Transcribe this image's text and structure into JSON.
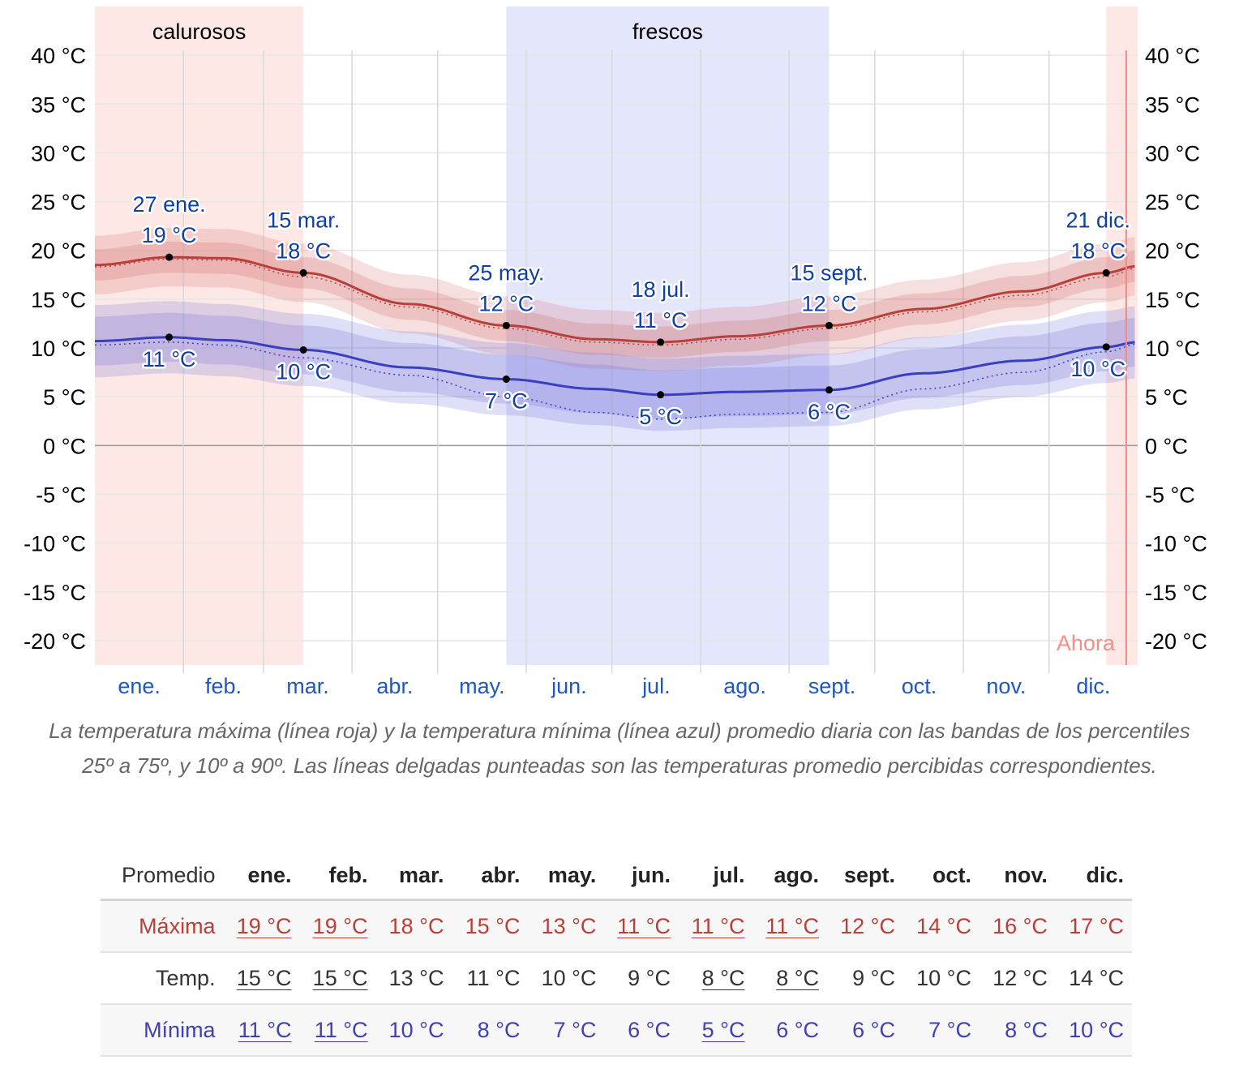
{
  "chart_data": {
    "type": "line",
    "title": "",
    "xlabel": "",
    "ylabel": "",
    "ylim": [
      -22.5,
      45
    ],
    "y_ticks": [
      -20,
      -15,
      -10,
      -5,
      0,
      5,
      10,
      15,
      20,
      25,
      30,
      35,
      40
    ],
    "y_tick_labels": [
      "-20 °C",
      "-15 °C",
      "-10 °C",
      "-5 °C",
      "0 °C",
      "5 °C",
      "10 °C",
      "15 °C",
      "20 °C",
      "25 °C",
      "30 °C",
      "35 °C",
      "40 °C"
    ],
    "months": [
      "ene.",
      "feb.",
      "mar.",
      "abr.",
      "may.",
      "jun.",
      "jul.",
      "ago.",
      "sept.",
      "oct.",
      "nov.",
      "dic."
    ],
    "seasons": [
      {
        "label": "calurosos",
        "start_day": 0,
        "end_day": 73,
        "color": "#fde8e6"
      },
      {
        "label": "frescos",
        "start_day": 144,
        "end_day": 257,
        "color": "#e4e6fb"
      },
      {
        "label": "",
        "start_day": 354,
        "end_day": 365,
        "color": "#fde8e6"
      }
    ],
    "now": {
      "label": "Ahora",
      "day": 361
    },
    "series": [
      {
        "key": "high",
        "color": "#b8403a",
        "days": [
          0,
          26,
          45,
          73,
          110,
          144,
          175,
          198,
          225,
          257,
          290,
          325,
          354,
          365
        ],
        "values": [
          18.5,
          19.3,
          19.2,
          17.7,
          14.5,
          12.3,
          10.9,
          10.6,
          11.2,
          12.3,
          14.0,
          15.8,
          17.7,
          18.4
        ],
        "feels": [
          18.3,
          19.1,
          19.0,
          17.3,
          14.2,
          12.0,
          10.6,
          10.3,
          10.9,
          12.0,
          13.7,
          15.4,
          17.3,
          18.2
        ],
        "p25_75": 1.6,
        "p10_90": 3.0
      },
      {
        "key": "low",
        "color": "#3a3ec0",
        "days": [
          0,
          26,
          45,
          73,
          110,
          144,
          175,
          198,
          225,
          257,
          290,
          325,
          354,
          365
        ],
        "values": [
          10.7,
          11.1,
          10.8,
          9.8,
          8.0,
          6.8,
          5.8,
          5.2,
          5.5,
          5.7,
          7.4,
          8.7,
          10.1,
          10.6
        ],
        "feels": [
          10.3,
          10.6,
          10.3,
          9.0,
          7.2,
          5.0,
          3.4,
          2.7,
          3.2,
          3.4,
          5.8,
          7.5,
          9.6,
          10.4
        ],
        "p25_75": 2.5,
        "p10_90": 3.7
      }
    ],
    "annotations": [
      {
        "day": 26,
        "value": 19.3,
        "date": "27 ene.",
        "temp": "19 °C",
        "series": "high"
      },
      {
        "day": 73,
        "value": 17.7,
        "date": "15 mar.",
        "temp": "18 °C",
        "series": "high"
      },
      {
        "day": 144,
        "value": 12.3,
        "date": "25 may.",
        "temp": "12 °C",
        "series": "high"
      },
      {
        "day": 198,
        "value": 10.6,
        "date": "18 jul.",
        "temp": "11 °C",
        "series": "high"
      },
      {
        "day": 257,
        "value": 12.3,
        "date": "15 sept.",
        "temp": "12 °C",
        "series": "high"
      },
      {
        "day": 354,
        "value": 17.7,
        "date": "21 dic.",
        "temp": "18 °C",
        "series": "high"
      },
      {
        "day": 26,
        "value": 11.1,
        "date": "",
        "temp": "11 °C",
        "series": "low"
      },
      {
        "day": 73,
        "value": 9.8,
        "date": "",
        "temp": "10 °C",
        "series": "low"
      },
      {
        "day": 144,
        "value": 6.8,
        "date": "",
        "temp": "7 °C",
        "series": "low"
      },
      {
        "day": 198,
        "value": 5.2,
        "date": "",
        "temp": "5 °C",
        "series": "low"
      },
      {
        "day": 257,
        "value": 5.7,
        "date": "",
        "temp": "6 °C",
        "series": "low"
      },
      {
        "day": 354,
        "value": 10.1,
        "date": "",
        "temp": "10 °C",
        "series": "low"
      }
    ]
  },
  "caption": "La temperatura máxima (línea roja) y la temperatura mínima (línea azul) promedio diaria con las bandas de los percentiles 25º a 75º, y 10º a 90º. Las líneas delgadas punteadas son las temperaturas promedio percibidas correspondientes.",
  "table": {
    "header_label": "Promedio",
    "months": [
      "ene.",
      "feb.",
      "mar.",
      "abr.",
      "may.",
      "jun.",
      "jul.",
      "ago.",
      "sept.",
      "oct.",
      "nov.",
      "dic."
    ],
    "rows": [
      {
        "key": "max",
        "label": "Máxima",
        "values": [
          "19 °C",
          "19 °C",
          "18 °C",
          "15 °C",
          "13 °C",
          "11 °C",
          "11 °C",
          "11 °C",
          "12 °C",
          "14 °C",
          "16 °C",
          "17 °C"
        ],
        "underlined": [
          true,
          true,
          false,
          false,
          false,
          true,
          true,
          true,
          false,
          false,
          false,
          false
        ]
      },
      {
        "key": "avg",
        "label": "Temp.",
        "values": [
          "15 °C",
          "15 °C",
          "13 °C",
          "11 °C",
          "10 °C",
          "9 °C",
          "8 °C",
          "8 °C",
          "9 °C",
          "10 °C",
          "12 °C",
          "14 °C"
        ],
        "underlined": [
          true,
          true,
          false,
          false,
          false,
          false,
          true,
          true,
          false,
          false,
          false,
          false
        ]
      },
      {
        "key": "min",
        "label": "Mínima",
        "values": [
          "11 °C",
          "11 °C",
          "10 °C",
          "8 °C",
          "7 °C",
          "6 °C",
          "5 °C",
          "6 °C",
          "6 °C",
          "7 °C",
          "8 °C",
          "10 °C"
        ],
        "underlined": [
          true,
          true,
          false,
          false,
          false,
          false,
          true,
          false,
          false,
          false,
          false,
          false
        ]
      }
    ]
  }
}
